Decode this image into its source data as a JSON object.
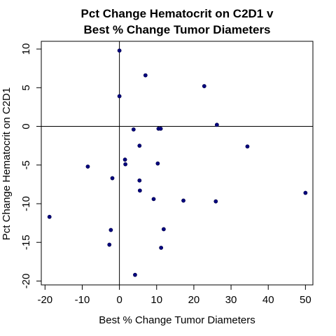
{
  "chart_data": {
    "type": "scatter",
    "title": "Pct Change Hematocrit on C2D1 v",
    "subtitle": "Best % Change Tumor Diameters",
    "xlabel": "Best % Change Tumor Diameters",
    "ylabel": "Pct Change Hematocrit on C2D1",
    "xlim": [
      -21,
      52
    ],
    "ylim": [
      -20.5,
      11
    ],
    "xticks": [
      -20,
      -10,
      0,
      10,
      20,
      30,
      40,
      50
    ],
    "yticks": [
      -20,
      -15,
      -10,
      -5,
      0,
      5,
      10
    ],
    "reference_lines": {
      "x": 0,
      "y": 0
    },
    "point_color": "#000080",
    "points": [
      {
        "x": 0.0,
        "y": 9.8
      },
      {
        "x": 0.0,
        "y": 3.9
      },
      {
        "x": 7.0,
        "y": 6.6
      },
      {
        "x": 22.8,
        "y": 5.2
      },
      {
        "x": 26.2,
        "y": 0.2
      },
      {
        "x": 3.8,
        "y": -0.4
      },
      {
        "x": 10.5,
        "y": -0.3
      },
      {
        "x": 11.1,
        "y": -0.3
      },
      {
        "x": 5.4,
        "y": -2.5
      },
      {
        "x": 34.4,
        "y": -2.6
      },
      {
        "x": 1.5,
        "y": -4.3
      },
      {
        "x": 1.6,
        "y": -4.9
      },
      {
        "x": 10.3,
        "y": -4.8
      },
      {
        "x": -8.5,
        "y": -5.2
      },
      {
        "x": -1.9,
        "y": -6.7
      },
      {
        "x": 5.4,
        "y": -7.0
      },
      {
        "x": 5.5,
        "y": -8.3
      },
      {
        "x": 9.2,
        "y": -9.4
      },
      {
        "x": 17.2,
        "y": -9.6
      },
      {
        "x": 25.9,
        "y": -9.7
      },
      {
        "x": 50.0,
        "y": -8.6
      },
      {
        "x": -18.8,
        "y": -11.7
      },
      {
        "x": -2.3,
        "y": -13.4
      },
      {
        "x": 11.9,
        "y": -13.3
      },
      {
        "x": -2.7,
        "y": -15.3
      },
      {
        "x": 11.2,
        "y": -15.7
      },
      {
        "x": 4.2,
        "y": -19.2
      }
    ]
  }
}
